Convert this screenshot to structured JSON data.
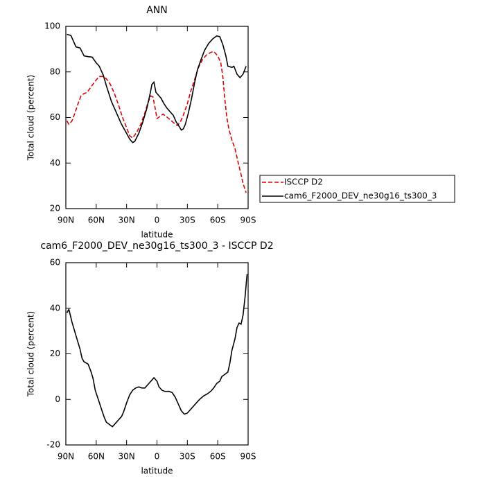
{
  "chart_data": [
    {
      "type": "line",
      "title": "ANN",
      "x_label": "latitude",
      "y_label": "Total cloud (percent)",
      "xlim": [
        90,
        -90
      ],
      "xticks": [
        {
          "value": 90,
          "label": "90N"
        },
        {
          "value": 60,
          "label": "60N"
        },
        {
          "value": 30,
          "label": "30N"
        },
        0,
        {
          "value": -30,
          "label": "30S"
        },
        {
          "value": -60,
          "label": "60S"
        },
        {
          "value": -90,
          "label": "90S"
        }
      ],
      "ylim": [
        20,
        100
      ],
      "yticks": [
        20,
        40,
        60,
        80,
        100
      ],
      "legend": "right",
      "series": [
        {
          "name": "ISCCP D2",
          "color": "#e00000",
          "line_style": "dashed",
          "x": [
            89,
            87,
            84,
            81,
            78,
            75,
            72,
            69,
            65,
            60,
            57,
            53,
            50,
            46,
            42,
            38,
            34,
            30,
            27,
            24,
            20,
            16,
            12,
            9,
            6,
            4,
            2,
            0,
            -3,
            -6,
            -9,
            -13,
            -17,
            -20,
            -23,
            -26,
            -30,
            -33,
            -37,
            -41,
            -45,
            -49,
            -53,
            -56,
            -60,
            -63,
            -65,
            -67,
            -69,
            -71,
            -74,
            -77,
            -80,
            -83,
            -85,
            -88
          ],
          "values": [
            58.5,
            57,
            58.5,
            62,
            66,
            69.5,
            70.5,
            71,
            73.5,
            76.5,
            78,
            78,
            77,
            74.5,
            70.5,
            65.5,
            60,
            55.5,
            52,
            51,
            53.5,
            57,
            62,
            66.5,
            69.5,
            69,
            64.5,
            59.5,
            60.5,
            61.5,
            60.5,
            59,
            57.5,
            56.5,
            58,
            61,
            66,
            71,
            76.5,
            82,
            85.5,
            87.5,
            88.5,
            89,
            87,
            84,
            78,
            68,
            60,
            55,
            50,
            46.5,
            40.5,
            35,
            31,
            27
          ]
        },
        {
          "name": "cam6_F2000_DEV_ne30g16_ts300_3",
          "color": "#000000",
          "line_style": "solid",
          "x": [
            89,
            85,
            80,
            76,
            72,
            68,
            64,
            60,
            57,
            53,
            50,
            45,
            40,
            35,
            30,
            27,
            24,
            22,
            18,
            14,
            10,
            7,
            5,
            3,
            1,
            -1,
            -4,
            -7,
            -10,
            -13,
            -16,
            -19,
            -22,
            -24,
            -26,
            -28,
            -31,
            -34,
            -37,
            -40,
            -44,
            -47,
            -51,
            -55,
            -59,
            -62,
            -65,
            -68,
            -70,
            -74,
            -76,
            -79,
            -82,
            -85,
            -88
          ],
          "values": [
            96.5,
            96,
            91,
            90.5,
            87,
            86.7,
            86.5,
            84,
            82.5,
            78.5,
            74,
            67,
            62,
            57,
            53,
            50.5,
            49,
            49.5,
            53,
            58,
            64,
            70,
            74.5,
            75.5,
            71,
            70,
            68.5,
            66,
            64,
            62.5,
            61,
            58,
            56,
            54.5,
            55,
            57,
            62,
            68,
            75,
            81,
            86,
            89.5,
            92.5,
            94.5,
            95.8,
            95.5,
            92,
            87,
            82.5,
            82,
            82.5,
            79,
            77.5,
            79,
            82.5
          ]
        }
      ]
    },
    {
      "type": "line",
      "title": "cam6_F2000_DEV_ne30g16_ts300_3 - ISCCP D2",
      "x_label": "latitude",
      "y_label": "Total cloud (percent)",
      "xlim": [
        90,
        -90
      ],
      "xticks": [
        {
          "value": 90,
          "label": "90N"
        },
        {
          "value": 60,
          "label": "60N"
        },
        {
          "value": 30,
          "label": "30N"
        },
        0,
        {
          "value": -30,
          "label": "30S"
        },
        {
          "value": -60,
          "label": "60S"
        },
        {
          "value": -90,
          "label": "90S"
        }
      ],
      "ylim": [
        -20,
        60
      ],
      "yticks": [
        -20,
        0,
        20,
        40,
        60
      ],
      "color": "#000000",
      "x": [
        89,
        87,
        84,
        80,
        76,
        74,
        72,
        68,
        65,
        63,
        61,
        58,
        55,
        52,
        50,
        47,
        44,
        41,
        38,
        35,
        33,
        30,
        27,
        24,
        21,
        18,
        15,
        12,
        9,
        6,
        3,
        0,
        -2,
        -5,
        -8,
        -12,
        -15,
        -18,
        -21,
        -24,
        -27,
        -30,
        -34,
        -38,
        -42,
        -46,
        -50,
        -53,
        -56,
        -59,
        -62,
        -64,
        -67,
        -70,
        -72,
        -74,
        -77,
        -79,
        -81,
        -83,
        -85,
        -87,
        -89
      ],
      "values": [
        38,
        39.5,
        34,
        28,
        22,
        18,
        16.5,
        15.5,
        12,
        9,
        4,
        0,
        -4,
        -8,
        -10,
        -11,
        -12,
        -10.5,
        -9,
        -7.5,
        -5.5,
        -1.5,
        2,
        4,
        5,
        5.5,
        5,
        5,
        6.5,
        8,
        9.5,
        8,
        5.5,
        4,
        3.5,
        3.5,
        3,
        1,
        -2,
        -5,
        -6.5,
        -6,
        -4,
        -2,
        0,
        1.5,
        2.5,
        3.5,
        5,
        7,
        8,
        10,
        11,
        12,
        16,
        21.5,
        26.5,
        31.5,
        33.5,
        33,
        37,
        45,
        55
      ]
    }
  ]
}
